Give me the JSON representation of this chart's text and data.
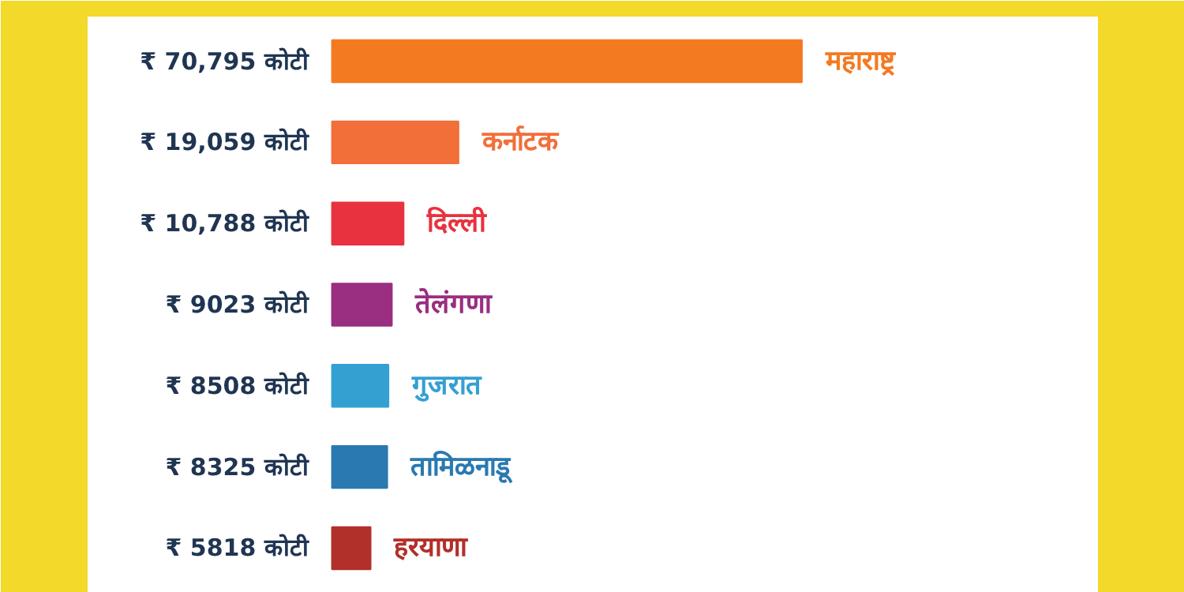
{
  "chart_data": {
    "type": "bar",
    "orientation": "horizontal",
    "categories": [
      "महाराष्ट्र",
      "कर्नाटक",
      "दिल्ली",
      "तेलंगणा",
      "गुजरात",
      "तामिळनाडू",
      "हरयाणा"
    ],
    "values": [
      70795,
      19059,
      10788,
      9023,
      8508,
      8325,
      5818
    ],
    "colors": [
      "#f47a22",
      "#f26f3a",
      "#e8323f",
      "#9a2e80",
      "#34a0d2",
      "#2a79b1",
      "#b2302a"
    ],
    "value_labels": [
      "₹ 70,795 कोटी",
      "₹ 19,059 कोटी",
      "₹ 10,788 कोटी",
      "₹ 9023 कोटी",
      "₹ 8508 कोटी",
      "₹ 8325 कोटी",
      "₹ 5818 कोटी"
    ]
  }
}
